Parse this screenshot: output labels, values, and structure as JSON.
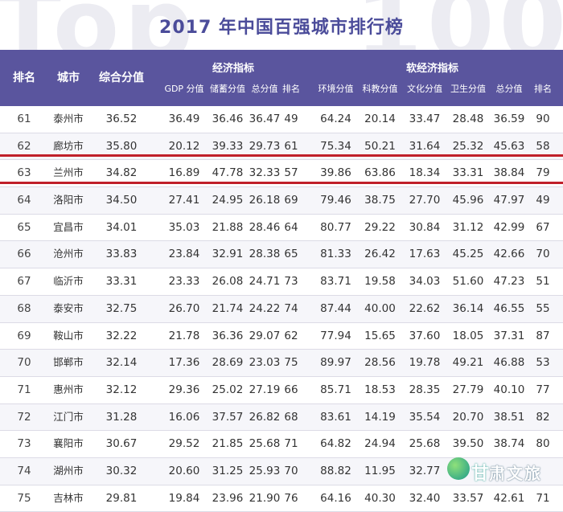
{
  "title": "2017 年中国百强城市排行榜",
  "watermark": {
    "left": "Top",
    "right": "100"
  },
  "header": {
    "rank": "排名",
    "city": "城市",
    "composite": "综合分值",
    "economy_group": "经济指标",
    "soft_group": "软经济指标",
    "gdp": "GDP 分值",
    "savings": "储蓄分值",
    "econ_total": "总分值",
    "econ_rank": "排名",
    "environment": "环境分值",
    "science": "科教分值",
    "culture": "文化分值",
    "health": "卫生分值",
    "soft_total": "总分值",
    "soft_rank": "排名"
  },
  "rows": [
    {
      "rank": "61",
      "city": "泰州市",
      "composite": "36.52",
      "gdp": "36.49",
      "savings": "36.46",
      "econ_total": "36.47",
      "econ_rank": "49",
      "environment": "64.24",
      "science": "20.14",
      "culture": "33.47",
      "health": "28.48",
      "soft_total": "36.59",
      "soft_rank": "90"
    },
    {
      "rank": "62",
      "city": "廊坊市",
      "composite": "35.80",
      "gdp": "20.12",
      "savings": "39.33",
      "econ_total": "29.73",
      "econ_rank": "61",
      "environment": "75.34",
      "science": "50.21",
      "culture": "31.64",
      "health": "25.32",
      "soft_total": "45.63",
      "soft_rank": "58"
    },
    {
      "rank": "63",
      "city": "兰州市",
      "composite": "34.82",
      "gdp": "16.89",
      "savings": "47.78",
      "econ_total": "32.33",
      "econ_rank": "57",
      "environment": "39.86",
      "science": "63.86",
      "culture": "18.34",
      "health": "33.31",
      "soft_total": "38.84",
      "soft_rank": "79"
    },
    {
      "rank": "64",
      "city": "洛阳市",
      "composite": "34.50",
      "gdp": "27.41",
      "savings": "24.95",
      "econ_total": "26.18",
      "econ_rank": "69",
      "environment": "79.46",
      "science": "38.75",
      "culture": "27.70",
      "health": "45.96",
      "soft_total": "47.97",
      "soft_rank": "49"
    },
    {
      "rank": "65",
      "city": "宜昌市",
      "composite": "34.01",
      "gdp": "35.03",
      "savings": "21.88",
      "econ_total": "28.46",
      "econ_rank": "64",
      "environment": "80.77",
      "science": "29.22",
      "culture": "30.84",
      "health": "31.12",
      "soft_total": "42.99",
      "soft_rank": "67"
    },
    {
      "rank": "66",
      "city": "沧州市",
      "composite": "33.83",
      "gdp": "23.84",
      "savings": "32.91",
      "econ_total": "28.38",
      "econ_rank": "65",
      "environment": "81.33",
      "science": "26.42",
      "culture": "17.63",
      "health": "45.25",
      "soft_total": "42.66",
      "soft_rank": "70"
    },
    {
      "rank": "67",
      "city": "临沂市",
      "composite": "33.31",
      "gdp": "23.33",
      "savings": "26.08",
      "econ_total": "24.71",
      "econ_rank": "73",
      "environment": "83.71",
      "science": "19.58",
      "culture": "34.03",
      "health": "51.60",
      "soft_total": "47.23",
      "soft_rank": "51"
    },
    {
      "rank": "68",
      "city": "泰安市",
      "composite": "32.75",
      "gdp": "26.70",
      "savings": "21.74",
      "econ_total": "24.22",
      "econ_rank": "74",
      "environment": "87.44",
      "science": "40.00",
      "culture": "22.62",
      "health": "36.14",
      "soft_total": "46.55",
      "soft_rank": "55"
    },
    {
      "rank": "69",
      "city": "鞍山市",
      "composite": "32.22",
      "gdp": "21.78",
      "savings": "36.36",
      "econ_total": "29.07",
      "econ_rank": "62",
      "environment": "77.94",
      "science": "15.65",
      "culture": "37.60",
      "health": "18.05",
      "soft_total": "37.31",
      "soft_rank": "87"
    },
    {
      "rank": "70",
      "city": "邯郸市",
      "composite": "32.14",
      "gdp": "17.36",
      "savings": "28.69",
      "econ_total": "23.03",
      "econ_rank": "75",
      "environment": "89.97",
      "science": "28.56",
      "culture": "19.78",
      "health": "49.21",
      "soft_total": "46.88",
      "soft_rank": "53"
    },
    {
      "rank": "71",
      "city": "惠州市",
      "composite": "32.12",
      "gdp": "29.36",
      "savings": "25.02",
      "econ_total": "27.19",
      "econ_rank": "66",
      "environment": "85.71",
      "science": "18.53",
      "culture": "28.35",
      "health": "27.79",
      "soft_total": "40.10",
      "soft_rank": "77"
    },
    {
      "rank": "72",
      "city": "江门市",
      "composite": "31.28",
      "gdp": "16.06",
      "savings": "37.57",
      "econ_total": "26.82",
      "econ_rank": "68",
      "environment": "83.61",
      "science": "14.19",
      "culture": "35.54",
      "health": "20.70",
      "soft_total": "38.51",
      "soft_rank": "82"
    },
    {
      "rank": "73",
      "city": "襄阳市",
      "composite": "30.67",
      "gdp": "29.52",
      "savings": "21.85",
      "econ_total": "25.68",
      "econ_rank": "71",
      "environment": "64.82",
      "science": "24.94",
      "culture": "25.68",
      "health": "39.50",
      "soft_total": "38.74",
      "soft_rank": "80"
    },
    {
      "rank": "74",
      "city": "湖州市",
      "composite": "30.32",
      "gdp": "20.60",
      "savings": "31.25",
      "econ_total": "25.93",
      "econ_rank": "70",
      "environment": "88.82",
      "science": "11.95",
      "culture": "32.77",
      "health": "",
      "soft_total": "",
      "soft_rank": ""
    },
    {
      "rank": "75",
      "city": "吉林市",
      "composite": "29.81",
      "gdp": "19.84",
      "savings": "23.96",
      "econ_total": "21.90",
      "econ_rank": "76",
      "environment": "64.16",
      "science": "40.30",
      "culture": "32.40",
      "health": "33.57",
      "soft_total": "42.61",
      "soft_rank": "71"
    }
  ],
  "logo": {
    "char": "甘",
    "text": "肃文旅"
  }
}
